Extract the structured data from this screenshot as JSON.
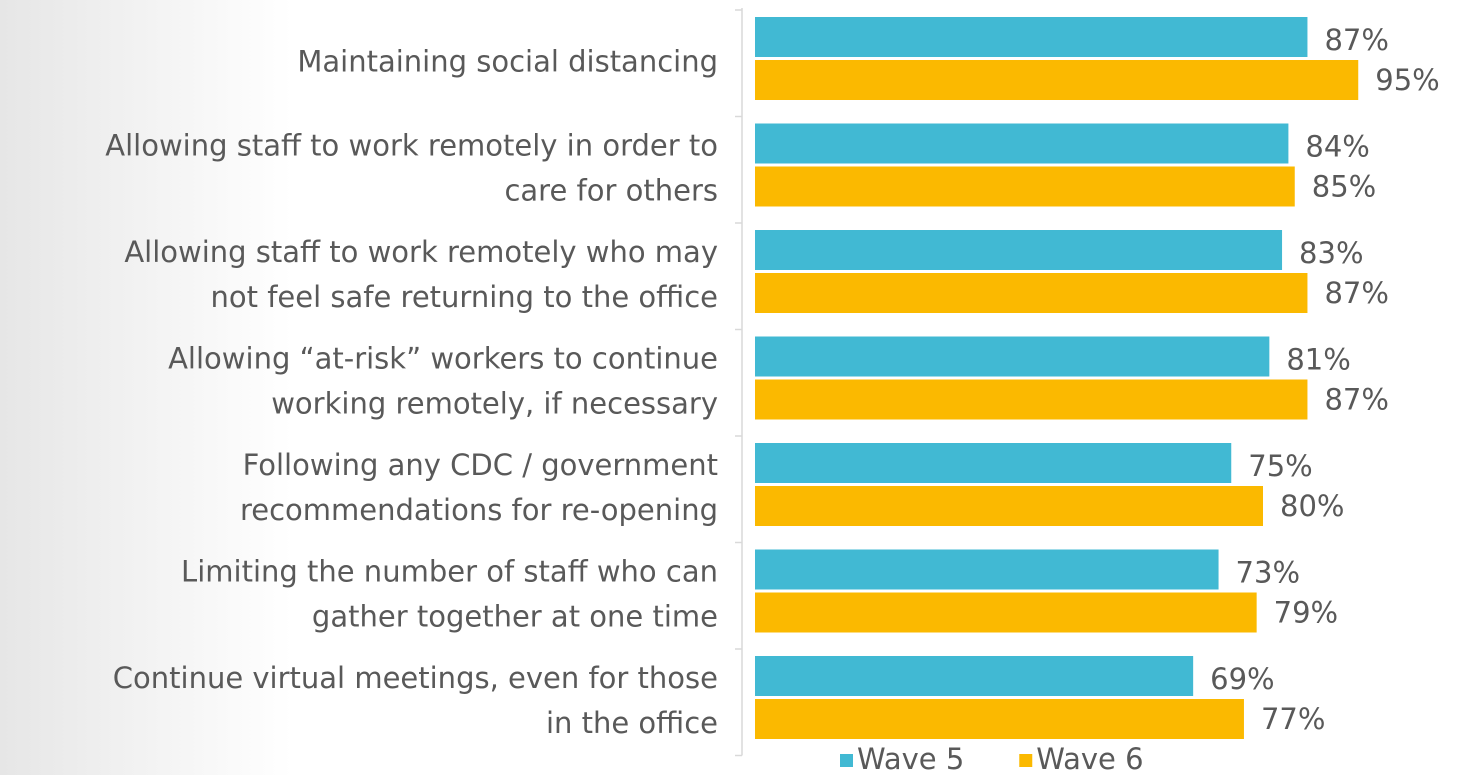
{
  "chart_data": {
    "type": "bar",
    "orientation": "horizontal",
    "categories": [
      [
        "Maintaining social distancing"
      ],
      [
        "Allowing staff to work remotely in order to",
        "care for others"
      ],
      [
        "Allowing staff to work remotely who may",
        "not feel safe returning to the office"
      ],
      [
        "Allowing “at-risk” workers to continue",
        "working remotely, if necessary"
      ],
      [
        "Following any CDC / government",
        "recommendations for re-opening"
      ],
      [
        "Limiting the number of staff who can",
        "gather together at one time"
      ],
      [
        "Continue virtual meetings, even for those",
        "in the office"
      ]
    ],
    "series": [
      {
        "name": "Wave 5",
        "color": "#41b9d3",
        "values": [
          87,
          84,
          83,
          81,
          75,
          73,
          69
        ],
        "value_labels": [
          "87%",
          "84%",
          "83%",
          "81%",
          "75%",
          "73%",
          "69%"
        ]
      },
      {
        "name": "Wave 6",
        "color": "#fbb900",
        "values": [
          95,
          85,
          87,
          87,
          80,
          79,
          77
        ],
        "value_labels": [
          "95%",
          "85%",
          "87%",
          "87%",
          "80%",
          "79%",
          "77%"
        ]
      }
    ],
    "xlim": [
      0,
      100
    ],
    "legend": "bottom"
  }
}
